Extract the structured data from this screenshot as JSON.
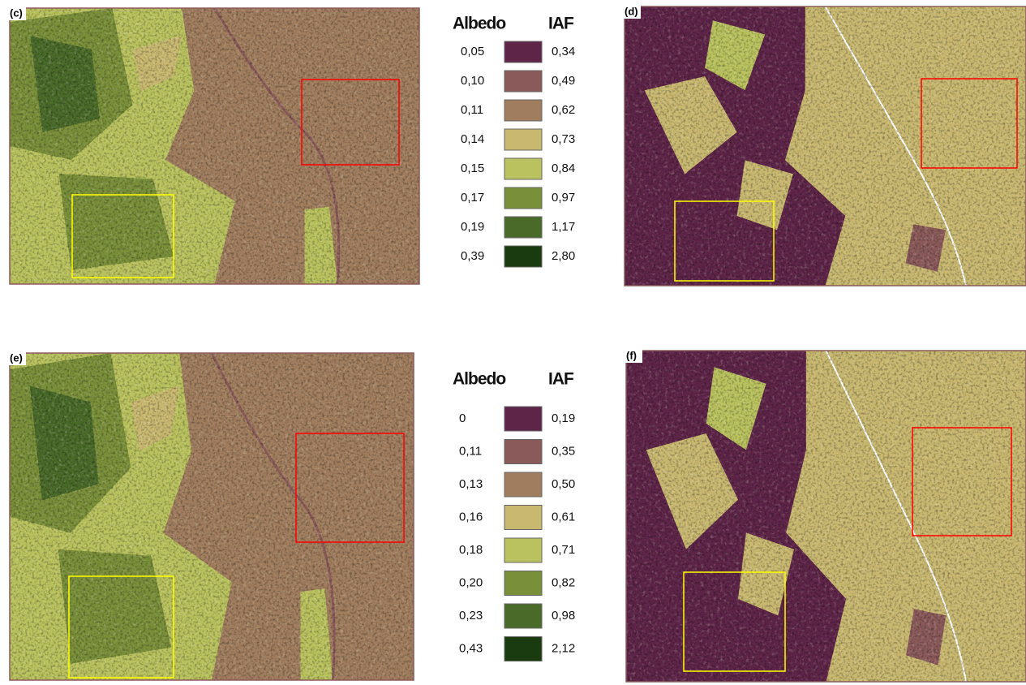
{
  "palette": [
    "#5e2548",
    "#8a5a5a",
    "#a07d5e",
    "#c8b870",
    "#b9c25e",
    "#7a8f3a",
    "#4a6a2a",
    "#1a3a0f"
  ],
  "panels": [
    {
      "label": "(c)"
    },
    {
      "label": "(d)"
    },
    {
      "label": "(e)"
    },
    {
      "label": "(f)"
    }
  ],
  "legends": [
    {
      "albedo_title": "Albedo",
      "iaf_title": "IAF",
      "albedo": [
        "0,05",
        "0,10",
        "0,11",
        "0,14",
        "0,15",
        "0,17",
        "0,19",
        "0,39"
      ],
      "iaf": [
        "0,34",
        "0,49",
        "0,62",
        "0,73",
        "0,84",
        "0,97",
        "1,17",
        "2,80"
      ]
    },
    {
      "albedo_title": "Albedo",
      "iaf_title": "IAF",
      "albedo": [
        "0",
        "0,11",
        "0,13",
        "0,16",
        "0,18",
        "0,20",
        "0,23",
        "0,43"
      ],
      "iaf": [
        "0,19",
        "0,35",
        "0,50",
        "0,61",
        "0,71",
        "0,82",
        "0,98",
        "2,12"
      ]
    }
  ]
}
